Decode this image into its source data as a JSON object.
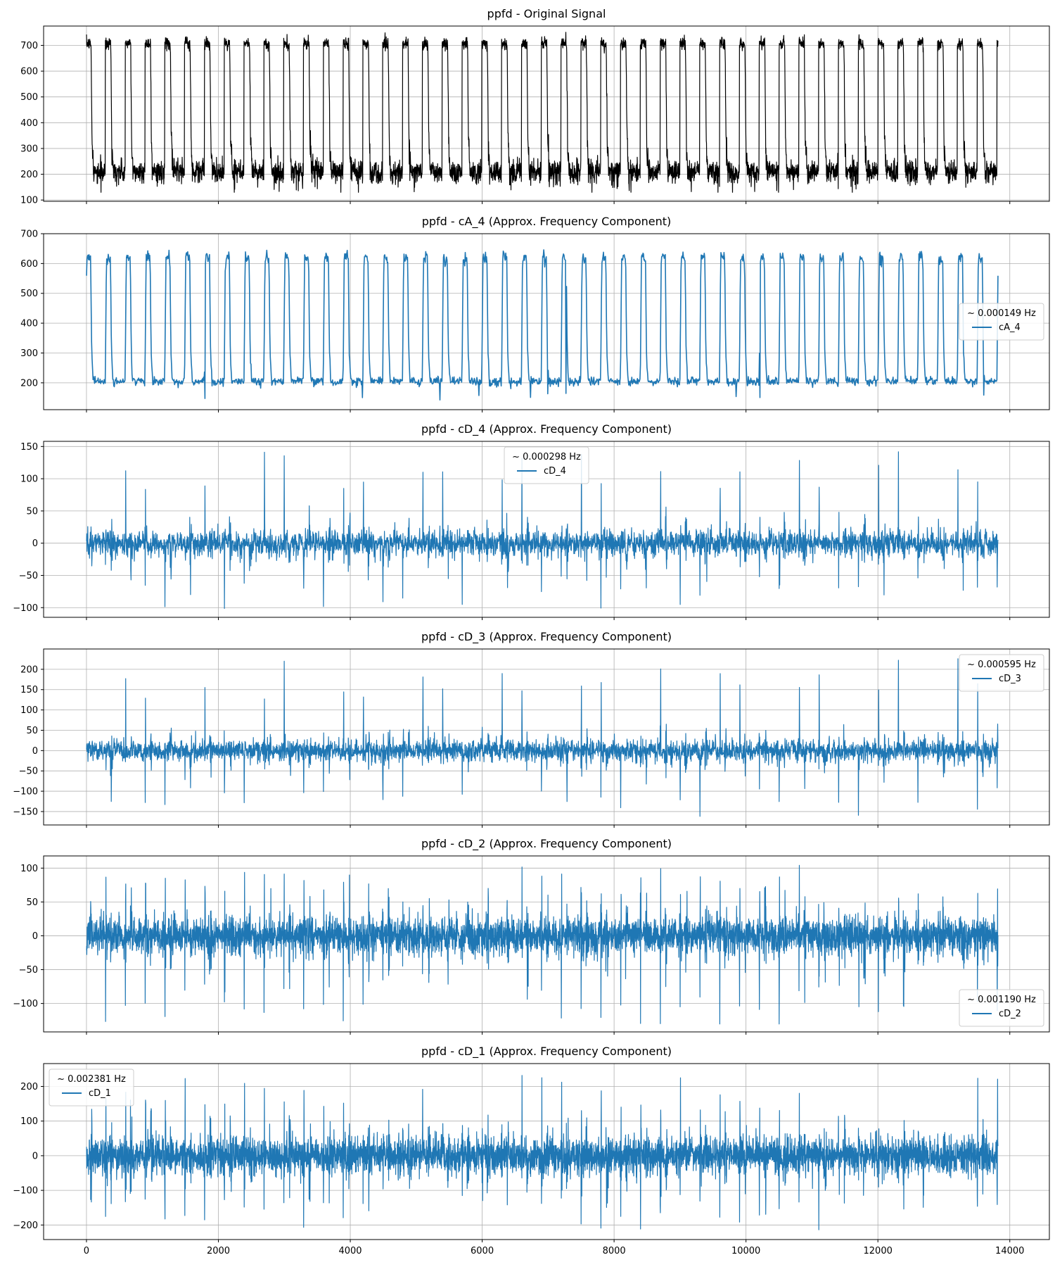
{
  "figure": {
    "line_color_original": "#000000",
    "line_color_component": "#1f77b4",
    "grid_color": "#b0b0b0"
  },
  "chart_data": [
    {
      "type": "line",
      "title": "ppfd - Original Signal",
      "xlim": [
        -650,
        14600
      ],
      "ylim": [
        95,
        775
      ],
      "xticks": [
        0,
        2000,
        4000,
        6000,
        8000,
        10000,
        12000,
        14000
      ],
      "yticks": [
        100,
        200,
        300,
        400,
        500,
        600,
        700
      ],
      "show_xtick_labels": false,
      "grid": true,
      "series": [
        {
          "name": "",
          "color": "#000000",
          "x_range": [
            0,
            13820
          ],
          "cycles": 46,
          "y_range": [
            130,
            755
          ],
          "baseline": 210,
          "peak": 710
        }
      ],
      "legend": null
    },
    {
      "type": "line",
      "title": "ppfd - cA_4 (Approx. Frequency Component)",
      "xlim": [
        -650,
        14600
      ],
      "ylim": [
        110,
        700
      ],
      "xticks": [
        0,
        2000,
        4000,
        6000,
        8000,
        10000,
        12000,
        14000
      ],
      "yticks": [
        200,
        300,
        400,
        500,
        600,
        700
      ],
      "show_xtick_labels": false,
      "grid": true,
      "series": [
        {
          "name": "cA_4",
          "color": "#1f77b4",
          "x_range": [
            0,
            13820
          ],
          "cycles": 46,
          "y_range": [
            130,
            678
          ],
          "baseline": 205,
          "peak": 630
        }
      ],
      "legend": {
        "title": "~ 0.000149 Hz",
        "entries": [
          "cA_4"
        ],
        "loc": "center-right"
      }
    },
    {
      "type": "line",
      "title": "ppfd - cD_4 (Approx. Frequency Component)",
      "xlim": [
        -650,
        14600
      ],
      "ylim": [
        -115,
        158
      ],
      "xticks": [
        0,
        2000,
        4000,
        6000,
        8000,
        10000,
        12000,
        14000
      ],
      "yticks": [
        -100,
        -50,
        0,
        50,
        100,
        150
      ],
      "show_xtick_labels": false,
      "grid": true,
      "series": [
        {
          "name": "cD_4",
          "color": "#1f77b4",
          "x_range": [
            0,
            13820
          ],
          "cycles": 46,
          "y_range": [
            -103,
            147
          ]
        }
      ],
      "legend": {
        "title": "~ 0.000298 Hz",
        "entries": [
          "cD_4"
        ],
        "loc": "upper-center"
      }
    },
    {
      "type": "line",
      "title": "ppfd - cD_3 (Approx. Frequency Component)",
      "xlim": [
        -650,
        14600
      ],
      "ylim": [
        -183,
        250
      ],
      "xticks": [
        0,
        2000,
        4000,
        6000,
        8000,
        10000,
        12000,
        14000
      ],
      "yticks": [
        -150,
        -100,
        -50,
        0,
        50,
        100,
        150,
        200
      ],
      "show_xtick_labels": false,
      "grid": true,
      "series": [
        {
          "name": "cD_3",
          "color": "#1f77b4",
          "x_range": [
            0,
            13820
          ],
          "cycles": 46,
          "y_range": [
            -162,
            230
          ]
        }
      ],
      "legend": {
        "title": "~ 0.000595 Hz",
        "entries": [
          "cD_3"
        ],
        "loc": "upper-right"
      }
    },
    {
      "type": "line",
      "title": "ppfd - cD_2 (Approx. Frequency Component)",
      "xlim": [
        -650,
        14600
      ],
      "ylim": [
        -142,
        118
      ],
      "xticks": [
        0,
        2000,
        4000,
        6000,
        8000,
        10000,
        12000,
        14000
      ],
      "yticks": [
        -100,
        -50,
        0,
        50,
        100
      ],
      "show_xtick_labels": false,
      "grid": true,
      "series": [
        {
          "name": "cD_2",
          "color": "#1f77b4",
          "x_range": [
            0,
            13820
          ],
          "cycles": 46,
          "y_range": [
            -131,
            106
          ]
        }
      ],
      "legend": {
        "title": "~ 0.001190 Hz",
        "entries": [
          "cD_2"
        ],
        "loc": "lower-right"
      }
    },
    {
      "type": "line",
      "title": "ppfd - cD_1 (Approx. Frequency Component)",
      "xlim": [
        -650,
        14600
      ],
      "ylim": [
        -242,
        266
      ],
      "xticks": [
        0,
        2000,
        4000,
        6000,
        8000,
        10000,
        12000,
        14000
      ],
      "yticks": [
        -200,
        -100,
        0,
        100,
        200
      ],
      "show_xtick_labels": true,
      "grid": true,
      "series": [
        {
          "name": "cD_1",
          "color": "#1f77b4",
          "x_range": [
            0,
            13820
          ],
          "cycles": 46,
          "y_range": [
            -215,
            232
          ]
        }
      ],
      "legend": {
        "title": "~ 0.002381 Hz",
        "entries": [
          "cD_1"
        ],
        "loc": "upper-left"
      }
    }
  ]
}
